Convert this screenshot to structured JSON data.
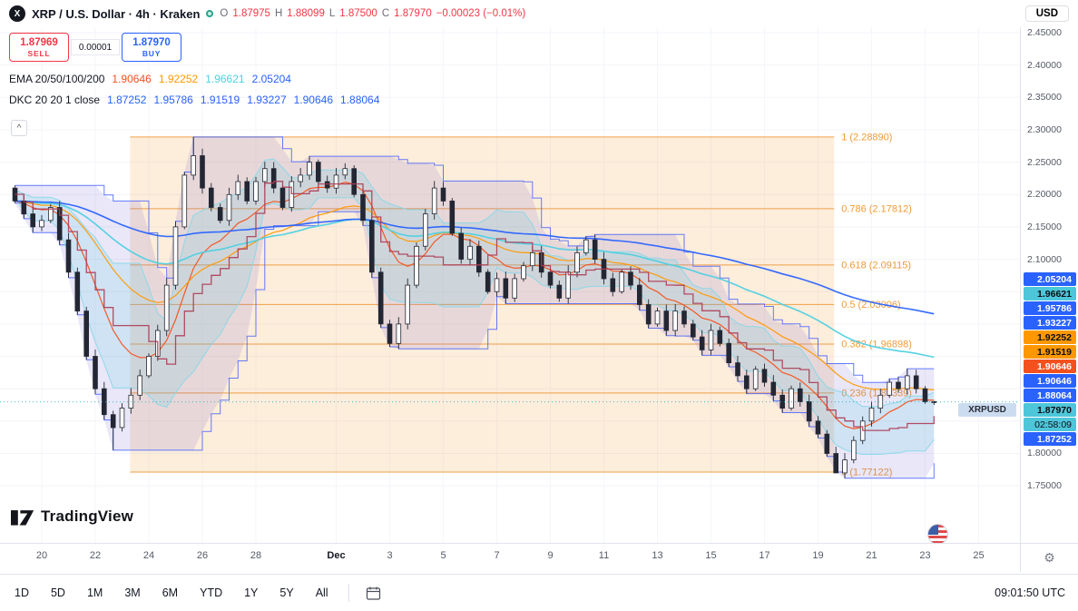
{
  "header": {
    "title": "XRP / U.S. Dollar · 4h · Kraken",
    "ohlc": {
      "o_label": "O",
      "o_value": "1.87975",
      "h_label": "H",
      "h_value": "1.88099",
      "l_label": "L",
      "l_value": "1.87500",
      "c_label": "C",
      "c_value": "1.87970",
      "change": "−0.00023 (−0.01%)"
    },
    "currency_button": "USD"
  },
  "trade_widget": {
    "sell_price": "1.87969",
    "sell_label": "SELL",
    "spread": "0.00001",
    "buy_price": "1.87970",
    "buy_label": "BUY"
  },
  "legend": {
    "ema": {
      "label": "EMA 20/50/100/200",
      "values": [
        {
          "text": "1.90646",
          "color": "#f4511e"
        },
        {
          "text": "1.92252",
          "color": "#ff9800"
        },
        {
          "text": "1.96621",
          "color": "#4dd0e1"
        },
        {
          "text": "2.05204",
          "color": "#2962ff"
        }
      ]
    },
    "dkc": {
      "label": "DKC 20 20 1 close",
      "values": [
        {
          "text": "1.87252",
          "color": "#2962ff"
        },
        {
          "text": "1.95786",
          "color": "#2962ff"
        },
        {
          "text": "1.91519",
          "color": "#2962ff"
        },
        {
          "text": "1.93227",
          "color": "#2962ff"
        },
        {
          "text": "1.90646",
          "color": "#2962ff"
        },
        {
          "text": "1.88064",
          "color": "#2962ff"
        }
      ]
    }
  },
  "price_axis": {
    "ticks": [
      "2.45000",
      "2.40000",
      "2.35000",
      "2.30000",
      "2.25000",
      "2.20000",
      "2.15000",
      "2.10000",
      "1.80000",
      "1.75000"
    ],
    "badges": [
      {
        "text": "2.05204",
        "bg": "#2962ff",
        "fg": "#ffffff"
      },
      {
        "text": "1.96621",
        "bg": "#4ec6da",
        "fg": "#0c0e15"
      },
      {
        "text": "1.95786",
        "bg": "#2962ff",
        "fg": "#ffffff"
      },
      {
        "text": "1.93227",
        "bg": "#2962ff",
        "fg": "#ffffff"
      },
      {
        "text": "1.92252",
        "bg": "#ff9800",
        "fg": "#0c0e15"
      },
      {
        "text": "1.91519",
        "bg": "#ff9800",
        "fg": "#0c0e15"
      },
      {
        "text": "1.90646",
        "bg": "#f4511e",
        "fg": "#ffffff"
      },
      {
        "text": "1.90646",
        "bg": "#2962ff",
        "fg": "#ffffff"
      },
      {
        "text": "1.88064",
        "bg": "#2962ff",
        "fg": "#ffffff"
      },
      {
        "text": "1.87970",
        "bg": "#4ec6da",
        "fg": "#0c0e15",
        "symbol_label": "XRPUSD",
        "countdown": "02:58:09"
      },
      {
        "text": "1.87252",
        "bg": "#2962ff",
        "fg": "#ffffff"
      }
    ]
  },
  "time_axis": {
    "labels": [
      {
        "text": "20",
        "day": 0
      },
      {
        "text": "22",
        "day": 2
      },
      {
        "text": "24",
        "day": 4
      },
      {
        "text": "26",
        "day": 6
      },
      {
        "text": "28",
        "day": 8
      },
      {
        "text": "Dec",
        "day": 11,
        "bold": true
      },
      {
        "text": "3",
        "day": 13
      },
      {
        "text": "5",
        "day": 15
      },
      {
        "text": "7",
        "day": 17
      },
      {
        "text": "9",
        "day": 19
      },
      {
        "text": "11",
        "day": 21
      },
      {
        "text": "13",
        "day": 23
      },
      {
        "text": "15",
        "day": 25
      },
      {
        "text": "17",
        "day": 27
      },
      {
        "text": "19",
        "day": 29
      },
      {
        "text": "21",
        "day": 31
      },
      {
        "text": "23",
        "day": 33
      },
      {
        "text": "25",
        "day": 35
      }
    ]
  },
  "toolbar": {
    "ranges": [
      "1D",
      "5D",
      "1M",
      "3M",
      "6M",
      "YTD",
      "1Y",
      "5Y",
      "All"
    ],
    "clock": "09:01:50 UTC"
  },
  "watermark": "TradingView",
  "chart_data": {
    "type": "candlestick",
    "symbol": "XRPUSD",
    "interval": "4h",
    "exchange": "Kraken",
    "ylim": [
      1.745,
      2.45
    ],
    "last_price": 1.8797,
    "start_day": -1,
    "step_days": 0.33333,
    "open_first": 2.21,
    "closes": [
      2.19,
      2.17,
      2.15,
      2.16,
      2.18,
      2.13,
      2.08,
      2.02,
      1.95,
      1.9,
      1.86,
      1.84,
      1.87,
      1.89,
      1.92,
      1.95,
      1.99,
      2.06,
      2.15,
      2.23,
      2.26,
      2.21,
      2.18,
      2.16,
      2.2,
      2.22,
      2.19,
      2.22,
      2.24,
      2.21,
      2.18,
      2.22,
      2.23,
      2.25,
      2.22,
      2.21,
      2.23,
      2.24,
      2.2,
      2.16,
      2.08,
      2.0,
      1.97,
      2.0,
      2.06,
      2.12,
      2.17,
      2.21,
      2.19,
      2.14,
      2.1,
      2.12,
      2.08,
      2.05,
      2.07,
      2.04,
      2.07,
      2.09,
      2.11,
      2.08,
      2.06,
      2.04,
      2.08,
      2.11,
      2.13,
      2.1,
      2.07,
      2.05,
      2.08,
      2.06,
      2.03,
      2.0,
      2.02,
      1.99,
      2.02,
      2.0,
      1.98,
      1.96,
      1.99,
      1.97,
      1.94,
      1.92,
      1.9,
      1.93,
      1.91,
      1.89,
      1.87,
      1.9,
      1.88,
      1.85,
      1.83,
      1.8,
      1.77,
      1.79,
      1.82,
      1.85,
      1.87,
      1.89,
      1.91,
      1.9,
      1.92,
      1.9,
      1.88,
      1.8797
    ],
    "wick_overrides": [
      [
        11,
        null,
        1.805
      ],
      [
        20,
        2.2889,
        null
      ],
      [
        92,
        null,
        1.77122
      ],
      [
        103,
        1.88099,
        1.875
      ]
    ],
    "fib": {
      "x_start_day": 3.3,
      "x_end_day": 29.6,
      "color": "#f0a04a",
      "levels": [
        {
          "label": "1 (2.28890)",
          "price": 2.2889
        },
        {
          "label": "0.786 (2.17812)",
          "price": 2.17812
        },
        {
          "label": "0.618 (2.09115)",
          "price": 2.09115
        },
        {
          "label": "0.5 (2.03006)",
          "price": 2.03006
        },
        {
          "label": "0.382 (1.96898)",
          "price": 1.96898
        },
        {
          "label": "0.236 (1.89339)",
          "price": 1.89339
        },
        {
          "label": "0 (1.77122)",
          "price": 1.77122
        }
      ]
    },
    "emas": [
      {
        "period": 20,
        "color": "#f4511e",
        "last": 1.90646
      },
      {
        "period": 50,
        "color": "#ff9800",
        "last": 1.92252
      },
      {
        "period": 100,
        "color": "#4dd0e1",
        "last": 1.96621
      },
      {
        "period": 200,
        "color": "#2962ff",
        "last": 2.05204
      }
    ],
    "donchian": {
      "window": 20,
      "upper_last": 1.95786,
      "mid_last": 1.91519,
      "lower_last": 1.87252,
      "fill": "rgba(110,95,210,0.15)",
      "inner_fill": "rgba(77,208,225,0.16)",
      "line_color": "#3d5afe",
      "mid_color": "#ad3b53"
    }
  }
}
